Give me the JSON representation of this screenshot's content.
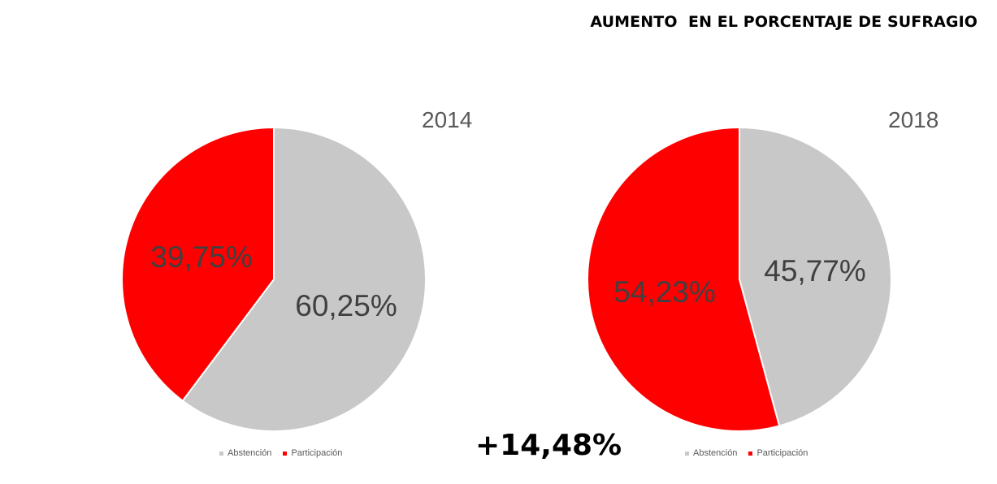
{
  "title": "AUMENTO  EN EL PORCENTAJE DE SUFRAGIO",
  "change_label": "+14,48%",
  "colors": {
    "abstencion": "#c8c8c8",
    "participacion": "#ff0000"
  },
  "chart_data": [
    {
      "type": "pie",
      "title": "2014",
      "legend": [
        "Abstención",
        "Participación"
      ],
      "slices": [
        {
          "name": "Abstención",
          "value": 60.25,
          "label": "60,25%"
        },
        {
          "name": "Participación",
          "value": 39.75,
          "label": "39,75%"
        }
      ],
      "legend_placement": "bottom"
    },
    {
      "type": "pie",
      "title": "2018",
      "legend": [
        "Abstención",
        "Participación"
      ],
      "slices": [
        {
          "name": "Abstención",
          "value": 45.77,
          "label": "45,77%"
        },
        {
          "name": "Participación",
          "value": 54.23,
          "label": "54,23%"
        }
      ],
      "legend_placement": "bottom"
    }
  ]
}
